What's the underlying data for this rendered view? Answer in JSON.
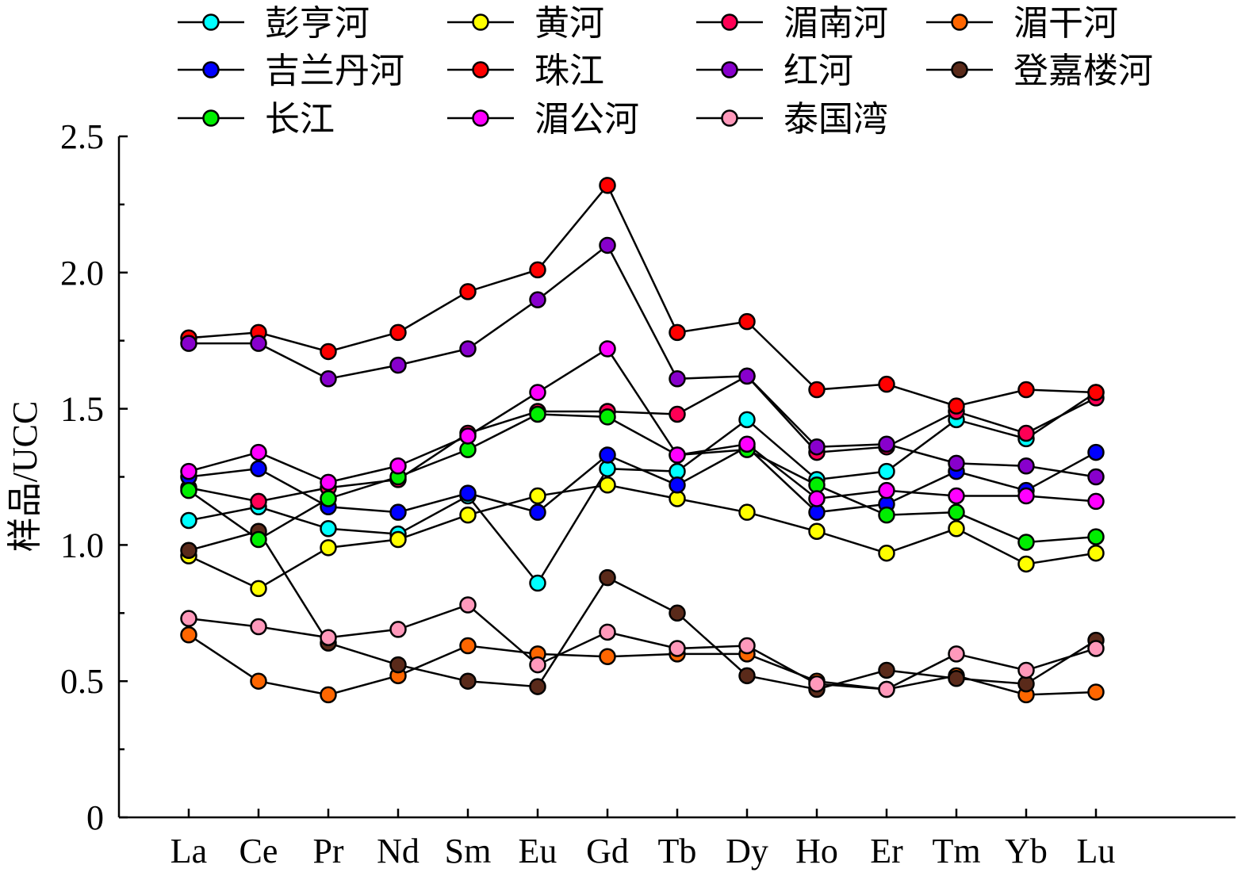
{
  "chart_data": {
    "type": "line",
    "ylabel": "样品/UCC",
    "xlabel": "",
    "ylim": [
      0,
      2.5
    ],
    "yticks": [
      "0",
      "0.5",
      "1.0",
      "1.5",
      "2.0",
      "2.5"
    ],
    "categories": [
      "La",
      "Ce",
      "Pr",
      "Nd",
      "Sm",
      "Eu",
      "Gd",
      "Tb",
      "Dy",
      "Ho",
      "Er",
      "Tm",
      "Yb",
      "Lu"
    ],
    "legend_position": "top",
    "series": [
      {
        "name": "彭亨河",
        "color": "#00ffff",
        "values": [
          1.09,
          1.14,
          1.06,
          1.04,
          1.18,
          0.86,
          1.28,
          1.27,
          1.46,
          1.24,
          1.27,
          1.46,
          1.39,
          1.56
        ]
      },
      {
        "name": "黄河",
        "color": "#ffff00",
        "values": [
          0.96,
          0.84,
          0.99,
          1.02,
          1.11,
          1.18,
          1.22,
          1.17,
          1.12,
          1.05,
          0.97,
          1.06,
          0.93,
          0.97
        ]
      },
      {
        "name": "湄南河",
        "color": "#ff0055",
        "values": [
          1.21,
          1.16,
          1.21,
          1.24,
          1.41,
          1.49,
          1.49,
          1.48,
          1.62,
          1.34,
          1.36,
          1.49,
          1.41,
          1.54
        ]
      },
      {
        "name": "湄干河",
        "color": "#ff6600",
        "values": [
          0.67,
          0.5,
          0.45,
          0.52,
          0.63,
          0.6,
          0.59,
          0.6,
          0.6,
          0.5,
          0.47,
          0.52,
          0.45,
          0.46
        ]
      },
      {
        "name": "吉兰丹河",
        "color": "#0000ff",
        "values": [
          1.25,
          1.28,
          1.14,
          1.12,
          1.19,
          1.12,
          1.33,
          1.22,
          1.36,
          1.12,
          1.15,
          1.27,
          1.2,
          1.34
        ]
      },
      {
        "name": "珠江",
        "color": "#ff0000",
        "values": [
          1.76,
          1.78,
          1.71,
          1.78,
          1.93,
          2.01,
          2.32,
          1.78,
          1.82,
          1.57,
          1.59,
          1.51,
          1.57,
          1.56
        ]
      },
      {
        "name": "红河",
        "color": "#8800cc",
        "values": [
          1.74,
          1.74,
          1.61,
          1.66,
          1.72,
          1.9,
          2.1,
          1.61,
          1.62,
          1.36,
          1.37,
          1.3,
          1.29,
          1.25
        ]
      },
      {
        "name": "登嘉楼河",
        "color": "#5a2a1a",
        "values": [
          0.98,
          1.05,
          0.64,
          0.56,
          0.5,
          0.48,
          0.88,
          0.75,
          0.52,
          0.47,
          0.54,
          0.51,
          0.49,
          0.65
        ]
      },
      {
        "name": "长江",
        "color": "#00ee00",
        "values": [
          1.2,
          1.02,
          1.17,
          1.25,
          1.35,
          1.48,
          1.47,
          1.33,
          1.35,
          1.22,
          1.11,
          1.12,
          1.01,
          1.03
        ]
      },
      {
        "name": "湄公河",
        "color": "#ff00ff",
        "values": [
          1.27,
          1.34,
          1.23,
          1.29,
          1.4,
          1.56,
          1.72,
          1.33,
          1.37,
          1.17,
          1.2,
          1.18,
          1.18,
          1.16
        ]
      },
      {
        "name": "泰国湾",
        "color": "#ff99bb",
        "values": [
          0.73,
          0.7,
          0.66,
          0.69,
          0.78,
          0.56,
          0.68,
          0.62,
          0.63,
          0.49,
          0.47,
          0.6,
          0.54,
          0.62
        ]
      }
    ]
  }
}
